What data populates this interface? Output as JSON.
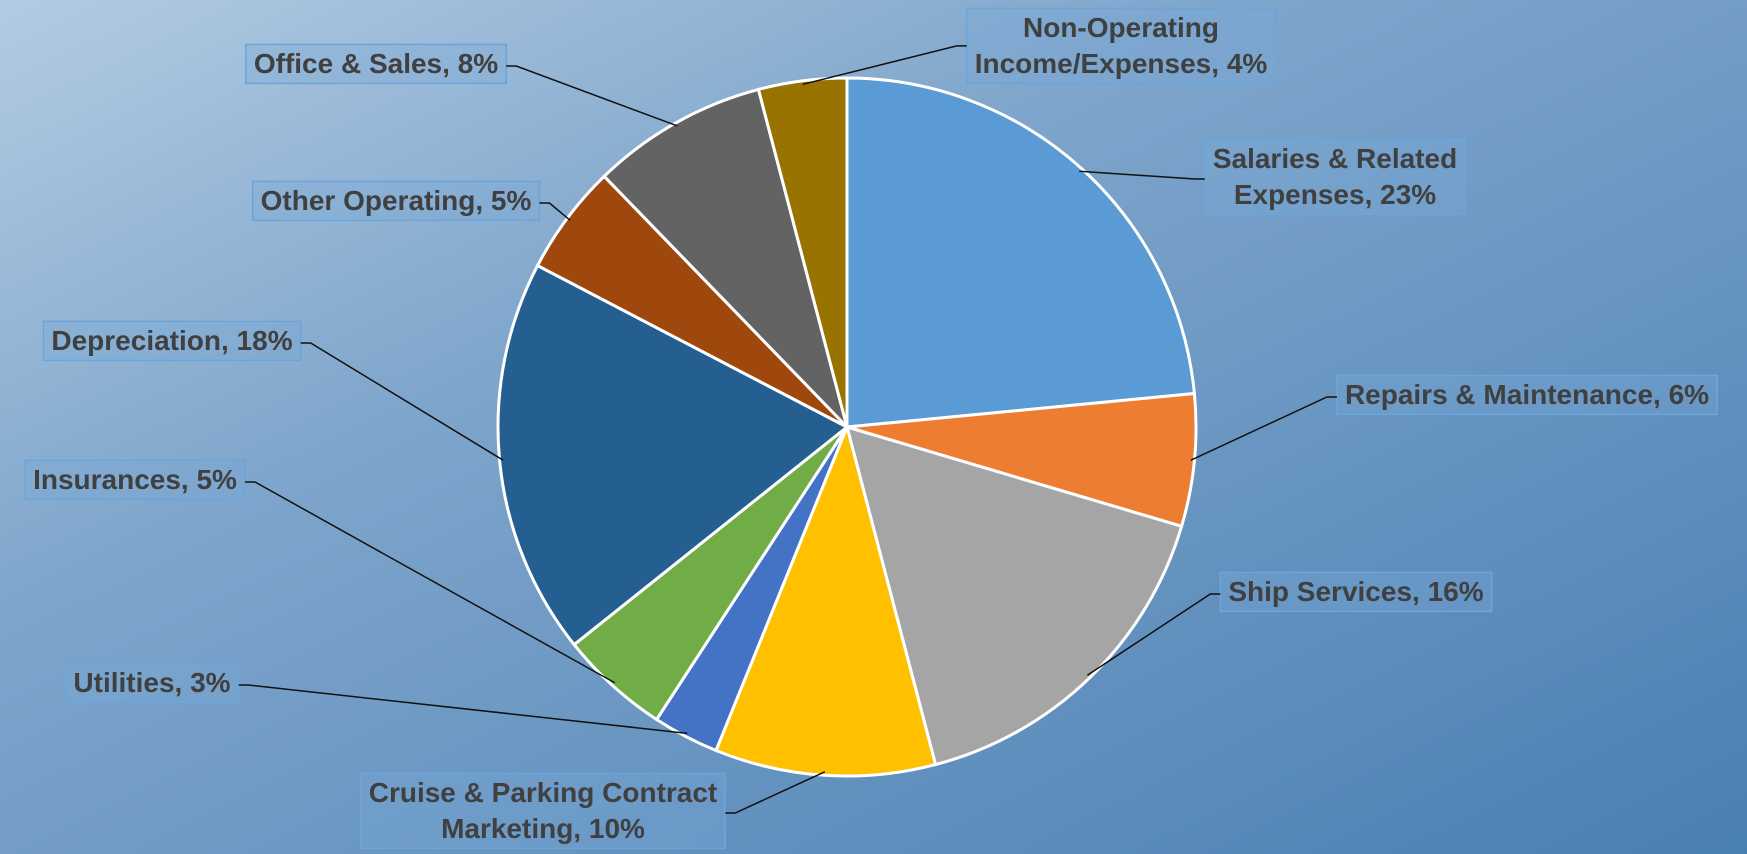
{
  "chart_data": {
    "type": "pie",
    "values": [
      23,
      6,
      16,
      10,
      3,
      5,
      18,
      5,
      8,
      4
    ],
    "value_labels": [
      "Salaries & Related\nExpenses, 23%",
      "Repairs & Maintenance, 6%",
      "Ship Services, 16%",
      "Cruise & Parking Contract\nMarketing, 10%",
      "Utilities, 3%",
      "Insurances, 5%",
      "Depreciation, 18%",
      "Other Operating, 5%",
      "Office & Sales, 8%",
      "Non-Operating\nIncome/Expenses, 4%"
    ],
    "colors": [
      "#5b9bd5",
      "#ed7d31",
      "#a5a5a5",
      "#ffc000",
      "#4472c4",
      "#70ad47",
      "#255e91",
      "#9e480e",
      "#636363",
      "#997300"
    ]
  }
}
